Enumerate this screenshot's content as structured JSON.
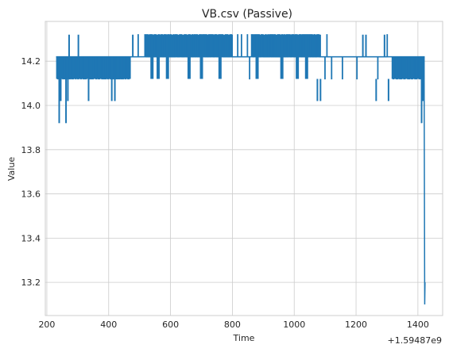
{
  "chart_data": {
    "type": "line",
    "title": "VB.csv (Passive)",
    "xlabel": "Time",
    "ylabel": "Value",
    "x_offset_label": "+1.59487e9",
    "xlim": [
      195,
      1480
    ],
    "ylim": [
      13.05,
      14.38
    ],
    "xticks": [
      200,
      400,
      600,
      800,
      1000,
      1200,
      1400
    ],
    "yticks": [
      13.2,
      13.4,
      13.6,
      13.8,
      14.0,
      14.2
    ],
    "ytick_labels": [
      "13.2",
      "13.4",
      "13.6",
      "13.8",
      "14.0",
      "14.2"
    ],
    "grid": true,
    "series": [
      {
        "color": "#1f77b4",
        "low": 14.12,
        "mid": 14.22,
        "high": 14.32,
        "segments": [
          {
            "x": [
              230,
              470
            ],
            "level": "lowmid"
          },
          {
            "x": [
              470,
              500
            ],
            "level": "mid"
          },
          {
            "x": [
              500,
              800
            ],
            "level": "midhigh"
          },
          {
            "x": [
              800,
              855
            ],
            "level": "mid"
          },
          {
            "x": [
              855,
              1090
            ],
            "level": "midhigh"
          },
          {
            "x": [
              1090,
              1300
            ],
            "level": "mid"
          },
          {
            "x": [
              1300,
              1420
            ],
            "level": "lowmid"
          }
        ],
        "dense_blocks": [
          {
            "x": [
              230,
              470
            ],
            "lo": 14.12,
            "hi": 14.22
          },
          {
            "x": [
              515,
              800
            ],
            "lo": 14.22,
            "hi": 14.32
          },
          {
            "x": [
              860,
              1085
            ],
            "lo": 14.22,
            "hi": 14.32
          },
          {
            "x": [
              1315,
              1420
            ],
            "lo": 14.12,
            "hi": 14.22
          }
        ],
        "spikes_low": [
          {
            "x": 240,
            "y": 13.92
          },
          {
            "x": 245,
            "y": 14.02
          },
          {
            "x": 262,
            "y": 13.92
          },
          {
            "x": 268,
            "y": 14.02
          },
          {
            "x": 335,
            "y": 14.02
          },
          {
            "x": 410,
            "y": 14.02
          },
          {
            "x": 420,
            "y": 14.02
          },
          {
            "x": 1075,
            "y": 14.02
          },
          {
            "x": 1085,
            "y": 14.02
          },
          {
            "x": 1265,
            "y": 14.02
          },
          {
            "x": 1305,
            "y": 14.02
          },
          {
            "x": 1412,
            "y": 13.92
          },
          {
            "x": 1416,
            "y": 14.02
          }
        ],
        "spikes_high": [
          {
            "x": 272,
            "y": 14.32
          },
          {
            "x": 302,
            "y": 14.32
          },
          {
            "x": 478,
            "y": 14.32
          },
          {
            "x": 1222,
            "y": 14.32
          },
          {
            "x": 1232,
            "y": 14.32
          },
          {
            "x": 1292,
            "y": 14.32
          }
        ],
        "dips_mid_to_low": [
          {
            "x": 540,
            "y": 14.12
          },
          {
            "x": 560,
            "y": 14.12
          },
          {
            "x": 590,
            "y": 14.12
          },
          {
            "x": 660,
            "y": 14.12
          },
          {
            "x": 700,
            "y": 14.12
          },
          {
            "x": 760,
            "y": 14.12
          },
          {
            "x": 880,
            "y": 14.12
          },
          {
            "x": 960,
            "y": 14.12
          },
          {
            "x": 1010,
            "y": 14.12
          },
          {
            "x": 1040,
            "y": 14.12
          }
        ],
        "final_drop": {
          "x": 1422,
          "y": 13.1
        }
      }
    ]
  }
}
